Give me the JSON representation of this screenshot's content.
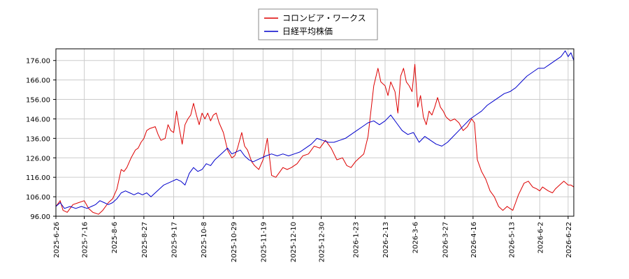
{
  "chart_data": {
    "type": "line",
    "legend_position": "top-center",
    "grid": true,
    "ylim": [
      96,
      182
    ],
    "y_ticks": [
      "96.00",
      "106.00",
      "116.00",
      "126.00",
      "136.00",
      "146.00",
      "156.00",
      "166.00",
      "176.00"
    ],
    "x_ticks": [
      "2025-6-26",
      "2025-7-16",
      "2025-8-6",
      "2025-8-27",
      "2025-9-17",
      "2025-10-8",
      "2025-10-29",
      "2025-11-19",
      "2025-12-10",
      "2025-12-30",
      "2026-1-23",
      "2026-2-13",
      "2026-3-6",
      "2026-3-27",
      "2026-4-16",
      "2026-5-13",
      "2026-6-2",
      "2026-6-22"
    ],
    "x_tick_positions": [
      0,
      20,
      41,
      62,
      83,
      104,
      125,
      146,
      167,
      187,
      211,
      232,
      253,
      274,
      294,
      321,
      341,
      361
    ],
    "x_range": [
      0,
      365
    ],
    "series": [
      {
        "name": "コロンビア・ワークス",
        "color": "#dd0000",
        "x": [
          0,
          3,
          5,
          8,
          12,
          16,
          20,
          23,
          26,
          30,
          33,
          37,
          40,
          43,
          46,
          48,
          50,
          53,
          56,
          58,
          60,
          62,
          64,
          66,
          70,
          72,
          74,
          77,
          79,
          81,
          83,
          85,
          87,
          89,
          91,
          93,
          95,
          97,
          99,
          101,
          103,
          105,
          107,
          109,
          111,
          113,
          115,
          118,
          121,
          124,
          126,
          128,
          131,
          133,
          135,
          138,
          140,
          143,
          146,
          149,
          152,
          155,
          158,
          160,
          163,
          166,
          170,
          174,
          178,
          182,
          186,
          190,
          194,
          198,
          202,
          205,
          208,
          211,
          214,
          217,
          220,
          224,
          227,
          229,
          232,
          234,
          236,
          239,
          241,
          243,
          245,
          247,
          249,
          251,
          253,
          255,
          257,
          259,
          261,
          263,
          265,
          267,
          269,
          271,
          273,
          275,
          278,
          281,
          284,
          287,
          290,
          293,
          295,
          297,
          300,
          303,
          306,
          309,
          312,
          315,
          318,
          320,
          322,
          324,
          326,
          328,
          330,
          333,
          336,
          339,
          341,
          343,
          345,
          347,
          350,
          352,
          355,
          358,
          361,
          363,
          365
        ],
        "values": [
          101,
          104,
          99,
          98,
          102,
          103,
          104,
          100,
          98,
          97,
          99,
          103,
          105,
          110,
          120,
          119,
          121,
          126,
          130,
          131,
          134,
          136,
          140,
          141,
          142,
          138,
          135,
          136,
          143,
          140,
          139,
          150,
          141,
          133,
          143,
          146,
          148,
          154,
          148,
          143,
          149,
          146,
          149,
          145,
          148,
          149,
          144,
          139,
          130,
          126,
          127,
          131,
          139,
          132,
          130,
          124,
          122,
          120,
          125,
          136,
          117,
          116,
          119,
          121,
          120,
          121,
          123,
          127,
          128,
          132,
          131,
          135,
          131,
          125,
          126,
          122,
          121,
          124,
          126,
          128,
          137,
          163,
          172,
          165,
          163,
          158,
          165,
          160,
          149,
          168,
          172,
          165,
          163,
          160,
          174,
          152,
          158,
          147,
          143,
          150,
          148,
          152,
          157,
          152,
          150,
          147,
          145,
          146,
          144,
          140,
          142,
          146,
          144,
          125,
          119,
          115,
          109,
          106,
          101,
          99,
          101,
          100,
          99,
          103,
          107,
          110,
          113,
          114,
          111,
          110,
          109,
          111,
          110,
          109,
          108,
          110,
          112,
          114,
          112,
          112,
          111
        ],
        "values_note": ""
      },
      {
        "name": "日経平均株価",
        "color": "#0000cc",
        "x": [
          0,
          3,
          6,
          10,
          14,
          18,
          22,
          25,
          28,
          31,
          34,
          37,
          40,
          43,
          46,
          49,
          52,
          55,
          58,
          61,
          64,
          67,
          70,
          73,
          76,
          79,
          82,
          85,
          88,
          91,
          94,
          97,
          100,
          103,
          106,
          109,
          112,
          115,
          118,
          121,
          124,
          127,
          130,
          133,
          136,
          139,
          142,
          145,
          148,
          152,
          156,
          160,
          164,
          168,
          172,
          176,
          180,
          184,
          188,
          192,
          196,
          200,
          204,
          208,
          212,
          216,
          220,
          224,
          228,
          232,
          236,
          240,
          244,
          248,
          252,
          256,
          260,
          264,
          268,
          272,
          276,
          280,
          284,
          288,
          292,
          296,
          300,
          304,
          308,
          312,
          316,
          320,
          324,
          328,
          332,
          336,
          340,
          344,
          348,
          352,
          356,
          359,
          361,
          363,
          365
        ],
        "values": [
          101,
          103,
          100,
          101,
          100,
          101,
          100,
          101,
          102,
          104,
          103,
          102,
          103,
          105,
          108,
          109,
          108,
          107,
          108,
          107,
          108,
          106,
          108,
          110,
          112,
          113,
          114,
          115,
          114,
          112,
          118,
          121,
          119,
          120,
          123,
          122,
          125,
          127,
          129,
          131,
          128,
          129,
          130,
          127,
          125,
          124,
          125,
          126,
          127,
          128,
          127,
          128,
          127,
          128,
          129,
          131,
          133,
          136,
          135,
          134,
          134,
          135,
          136,
          138,
          140,
          142,
          144,
          145,
          143,
          145,
          148,
          144,
          140,
          138,
          139,
          134,
          137,
          135,
          133,
          132,
          134,
          137,
          140,
          143,
          146,
          148,
          150,
          153,
          155,
          157,
          159,
          160,
          162,
          165,
          168,
          170,
          172,
          172,
          174,
          176,
          178,
          181,
          178,
          180,
          176
        ],
        "values_note": ""
      }
    ]
  }
}
